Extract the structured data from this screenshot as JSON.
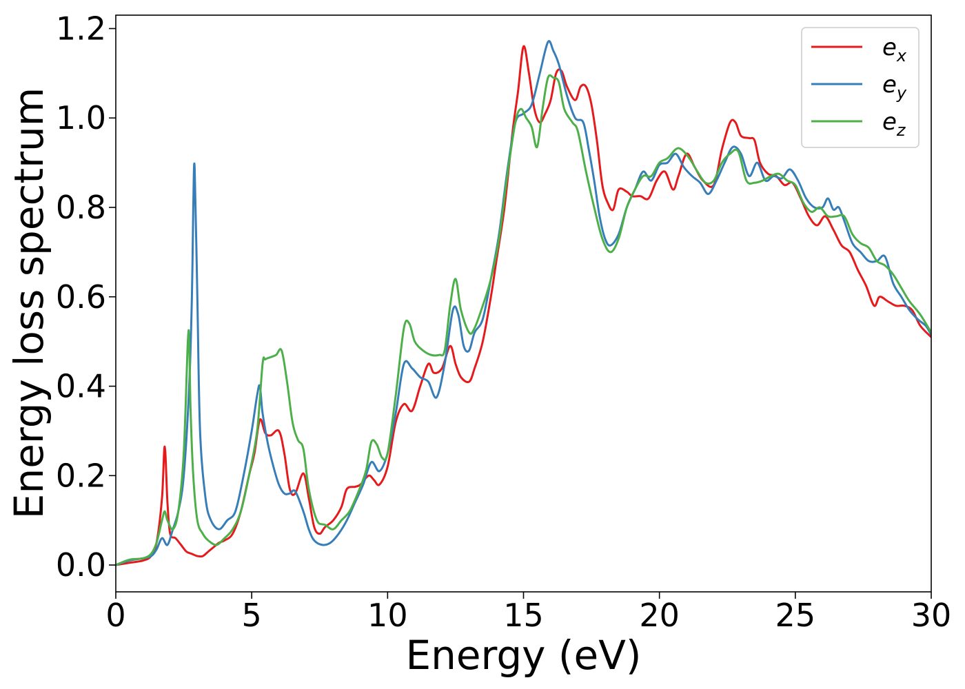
{
  "chart_data": {
    "type": "line",
    "xlabel": "Energy (eV)",
    "ylabel": "Energy loss spectrum",
    "xlim": [
      0,
      30
    ],
    "ylim": [
      -0.06,
      1.23
    ],
    "x_ticks": [
      0,
      5,
      10,
      15,
      20,
      25,
      30
    ],
    "x_tick_labels": [
      "0",
      "5",
      "10",
      "15",
      "20",
      "25",
      "30"
    ],
    "y_ticks": [
      0.0,
      0.2,
      0.4,
      0.6,
      0.8,
      1.0,
      1.2
    ],
    "y_tick_labels": [
      "0.0",
      "0.2",
      "0.4",
      "0.6",
      "0.8",
      "1.0",
      "1.2"
    ],
    "grid": false,
    "legend": {
      "position": "top-right",
      "entries": [
        {
          "base": "e",
          "sub": "x"
        },
        {
          "base": "e",
          "sub": "y"
        },
        {
          "base": "e",
          "sub": "z"
        }
      ]
    },
    "series": [
      {
        "name": "e_x",
        "color": "#e41a1c",
        "x": [
          0,
          0.5,
          1.0,
          1.3,
          1.5,
          1.7,
          1.8,
          1.9,
          2.0,
          2.2,
          2.4,
          2.6,
          2.8,
          3.0,
          3.2,
          3.4,
          3.6,
          3.8,
          4.0,
          4.3,
          4.6,
          4.9,
          5.1,
          5.3,
          5.5,
          5.7,
          6.0,
          6.2,
          6.4,
          6.6,
          6.9,
          7.1,
          7.3,
          7.5,
          7.7,
          8.0,
          8.3,
          8.5,
          8.8,
          9.0,
          9.3,
          9.5,
          9.7,
          10.0,
          10.3,
          10.6,
          10.9,
          11.2,
          11.5,
          11.7,
          12.0,
          12.3,
          12.5,
          12.7,
          13.0,
          13.2,
          13.5,
          13.8,
          14.0,
          14.3,
          14.6,
          14.8,
          15.0,
          15.2,
          15.4,
          15.6,
          15.8,
          16.0,
          16.2,
          16.4,
          16.6,
          16.9,
          17.1,
          17.3,
          17.5,
          17.7,
          17.9,
          18.1,
          18.3,
          18.5,
          18.8,
          19.0,
          19.3,
          19.6,
          19.9,
          20.2,
          20.5,
          20.7,
          21.0,
          21.3,
          21.6,
          22.0,
          22.3,
          22.6,
          22.8,
          23.0,
          23.3,
          23.5,
          23.7,
          24.0,
          24.3,
          24.6,
          24.9,
          25.2,
          25.5,
          25.8,
          26.1,
          26.4,
          26.7,
          27.0,
          27.3,
          27.6,
          27.9,
          28.1,
          28.4,
          28.7,
          29.0,
          29.3,
          29.6,
          30.0
        ],
        "y": [
          0,
          0.005,
          0.01,
          0.02,
          0.05,
          0.15,
          0.265,
          0.14,
          0.07,
          0.06,
          0.045,
          0.03,
          0.025,
          0.02,
          0.02,
          0.03,
          0.04,
          0.05,
          0.055,
          0.07,
          0.12,
          0.2,
          0.25,
          0.325,
          0.295,
          0.29,
          0.3,
          0.25,
          0.17,
          0.16,
          0.205,
          0.15,
          0.085,
          0.07,
          0.085,
          0.1,
          0.13,
          0.17,
          0.175,
          0.18,
          0.2,
          0.19,
          0.18,
          0.22,
          0.32,
          0.36,
          0.345,
          0.4,
          0.45,
          0.43,
          0.44,
          0.49,
          0.45,
          0.42,
          0.41,
          0.44,
          0.5,
          0.6,
          0.68,
          0.8,
          0.97,
          1.06,
          1.16,
          1.1,
          1.02,
          0.99,
          1.01,
          1.04,
          1.1,
          1.105,
          1.07,
          1.04,
          1.07,
          1.07,
          1.03,
          0.95,
          0.85,
          0.81,
          0.795,
          0.84,
          0.835,
          0.825,
          0.825,
          0.82,
          0.86,
          0.88,
          0.84,
          0.87,
          0.92,
          0.89,
          0.86,
          0.85,
          0.93,
          0.99,
          0.99,
          0.96,
          0.955,
          0.95,
          0.9,
          0.875,
          0.87,
          0.85,
          0.855,
          0.82,
          0.78,
          0.76,
          0.78,
          0.75,
          0.715,
          0.7,
          0.66,
          0.625,
          0.58,
          0.6,
          0.59,
          0.58,
          0.58,
          0.57,
          0.535,
          0.51
        ]
      },
      {
        "name": "e_y",
        "color": "#377eb8",
        "x": [
          0,
          0.5,
          1.0,
          1.3,
          1.5,
          1.7,
          1.9,
          2.1,
          2.3,
          2.5,
          2.7,
          2.8,
          2.85,
          2.9,
          3.0,
          3.1,
          3.3,
          3.5,
          3.8,
          4.1,
          4.4,
          4.7,
          5.0,
          5.2,
          5.3,
          5.4,
          5.6,
          5.8,
          6.0,
          6.2,
          6.4,
          6.6,
          6.9,
          7.1,
          7.3,
          7.6,
          7.9,
          8.2,
          8.5,
          8.8,
          9.1,
          9.4,
          9.7,
          10.0,
          10.3,
          10.6,
          10.9,
          11.2,
          11.5,
          11.8,
          12.1,
          12.4,
          12.6,
          12.8,
          13.0,
          13.2,
          13.5,
          13.8,
          14.1,
          14.4,
          14.7,
          15.0,
          15.3,
          15.6,
          15.9,
          16.1,
          16.3,
          16.6,
          16.9,
          17.2,
          17.4,
          17.6,
          17.8,
          18.0,
          18.2,
          18.5,
          18.8,
          19.1,
          19.4,
          19.7,
          20.0,
          20.3,
          20.6,
          20.9,
          21.2,
          21.5,
          21.8,
          22.1,
          22.4,
          22.7,
          23.0,
          23.3,
          23.6,
          23.9,
          24.2,
          24.5,
          24.8,
          25.1,
          25.4,
          25.7,
          26.0,
          26.2,
          26.4,
          26.6,
          26.8,
          27.1,
          27.4,
          27.7,
          28.0,
          28.3,
          28.6,
          28.9,
          29.2,
          29.5,
          29.8,
          30.0
        ],
        "y": [
          0,
          0.01,
          0.015,
          0.02,
          0.035,
          0.06,
          0.045,
          0.08,
          0.12,
          0.2,
          0.4,
          0.6,
          0.8,
          0.89,
          0.6,
          0.3,
          0.15,
          0.1,
          0.08,
          0.1,
          0.12,
          0.2,
          0.3,
          0.38,
          0.4,
          0.34,
          0.27,
          0.22,
          0.18,
          0.16,
          0.16,
          0.165,
          0.12,
          0.08,
          0.055,
          0.045,
          0.05,
          0.07,
          0.1,
          0.14,
          0.18,
          0.23,
          0.21,
          0.25,
          0.34,
          0.45,
          0.44,
          0.42,
          0.41,
          0.375,
          0.45,
          0.57,
          0.56,
          0.49,
          0.48,
          0.52,
          0.55,
          0.64,
          0.74,
          0.88,
          0.99,
          1.01,
          1.03,
          1.1,
          1.17,
          1.15,
          1.12,
          1.05,
          1.0,
          0.99,
          0.93,
          0.86,
          0.78,
          0.73,
          0.715,
          0.74,
          0.8,
          0.84,
          0.88,
          0.86,
          0.895,
          0.9,
          0.92,
          0.89,
          0.87,
          0.855,
          0.83,
          0.86,
          0.9,
          0.935,
          0.92,
          0.87,
          0.9,
          0.86,
          0.87,
          0.865,
          0.885,
          0.86,
          0.82,
          0.8,
          0.8,
          0.82,
          0.795,
          0.8,
          0.77,
          0.72,
          0.7,
          0.68,
          0.68,
          0.69,
          0.63,
          0.6,
          0.57,
          0.55,
          0.535,
          0.515
        ]
      },
      {
        "name": "e_z",
        "color": "#4daf4a",
        "x": [
          0,
          0.5,
          1.0,
          1.3,
          1.5,
          1.7,
          1.8,
          1.9,
          2.1,
          2.3,
          2.5,
          2.65,
          2.7,
          2.75,
          2.85,
          3.0,
          3.2,
          3.4,
          3.7,
          4.0,
          4.3,
          4.6,
          4.9,
          5.2,
          5.4,
          5.5,
          5.7,
          5.9,
          6.1,
          6.3,
          6.5,
          6.7,
          6.9,
          7.1,
          7.4,
          7.7,
          8.0,
          8.3,
          8.6,
          8.9,
          9.2,
          9.4,
          9.6,
          9.8,
          10.0,
          10.3,
          10.6,
          10.8,
          11.0,
          11.3,
          11.6,
          11.9,
          12.1,
          12.3,
          12.5,
          12.7,
          13.0,
          13.2,
          13.5,
          13.8,
          14.1,
          14.4,
          14.7,
          14.9,
          15.1,
          15.3,
          15.5,
          15.7,
          15.9,
          16.1,
          16.3,
          16.5,
          16.8,
          17.0,
          17.3,
          17.6,
          17.9,
          18.2,
          18.5,
          18.8,
          19.1,
          19.4,
          19.7,
          20.0,
          20.3,
          20.6,
          20.8,
          21.1,
          21.4,
          21.7,
          22.0,
          22.3,
          22.6,
          22.9,
          23.2,
          23.5,
          23.8,
          24.1,
          24.4,
          24.7,
          25.0,
          25.3,
          25.6,
          25.9,
          26.2,
          26.5,
          26.8,
          27.1,
          27.4,
          27.7,
          28.0,
          28.3,
          28.6,
          28.9,
          29.2,
          29.6,
          30.0
        ],
        "y": [
          0,
          0.012,
          0.015,
          0.025,
          0.05,
          0.1,
          0.12,
          0.1,
          0.08,
          0.12,
          0.25,
          0.5,
          0.5,
          0.35,
          0.2,
          0.1,
          0.07,
          0.055,
          0.045,
          0.06,
          0.08,
          0.12,
          0.2,
          0.3,
          0.45,
          0.46,
          0.465,
          0.47,
          0.48,
          0.41,
          0.32,
          0.28,
          0.26,
          0.17,
          0.1,
          0.09,
          0.08,
          0.1,
          0.12,
          0.16,
          0.21,
          0.275,
          0.27,
          0.24,
          0.25,
          0.38,
          0.53,
          0.54,
          0.5,
          0.48,
          0.47,
          0.47,
          0.48,
          0.58,
          0.64,
          0.57,
          0.52,
          0.53,
          0.58,
          0.64,
          0.73,
          0.87,
          0.99,
          1.02,
          1.0,
          0.98,
          0.935,
          1.02,
          1.09,
          1.09,
          1.08,
          1.02,
          0.99,
          0.97,
          0.88,
          0.8,
          0.73,
          0.7,
          0.73,
          0.8,
          0.84,
          0.87,
          0.87,
          0.9,
          0.91,
          0.93,
          0.93,
          0.91,
          0.88,
          0.855,
          0.86,
          0.9,
          0.92,
          0.925,
          0.86,
          0.855,
          0.86,
          0.87,
          0.875,
          0.86,
          0.85,
          0.81,
          0.79,
          0.8,
          0.78,
          0.78,
          0.78,
          0.74,
          0.72,
          0.71,
          0.68,
          0.67,
          0.65,
          0.62,
          0.59,
          0.56,
          0.52
        ]
      }
    ]
  }
}
